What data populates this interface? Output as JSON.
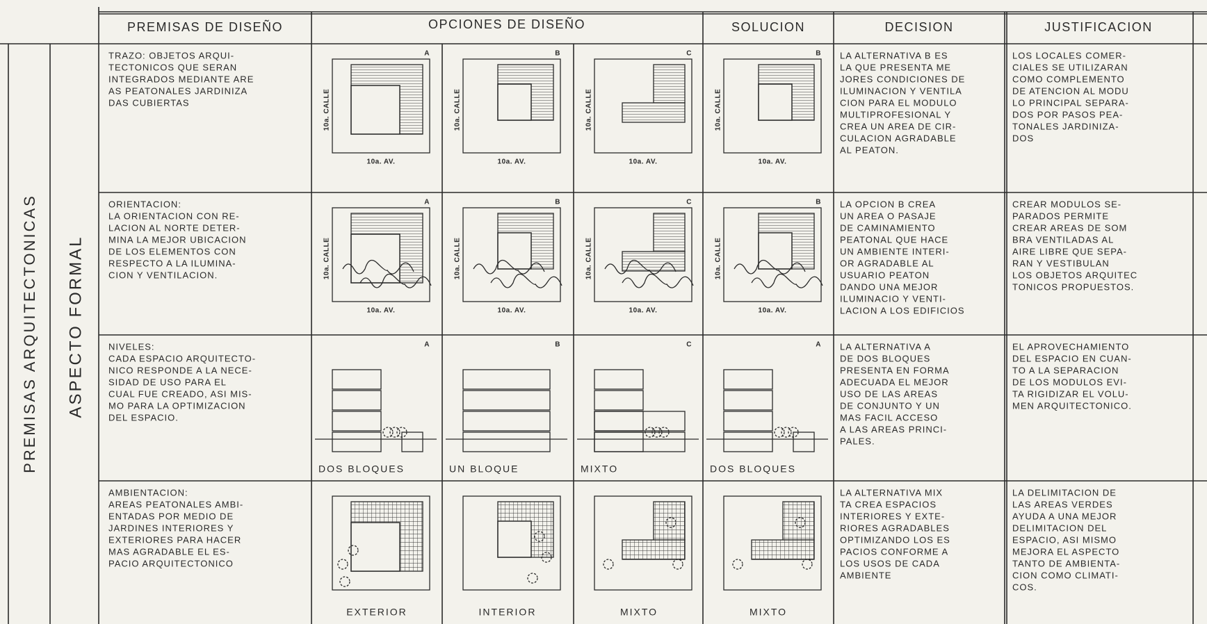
{
  "header": {
    "premisas": "PREMISAS DE DISEÑO",
    "opciones": "OPCIONES DE DISEÑO",
    "solucion": "SOLUCION",
    "decision": "DECISION",
    "justificacion": "JUSTIFICACION"
  },
  "side": {
    "group": "PREMISAS ARQUITECTONICAS",
    "aspect": "ASPECTO FORMAL"
  },
  "street_label": "10a. CALLE",
  "avenue_label": "10a. AV.",
  "rows": [
    {
      "premise": [
        "TRAZO: OBJETOS ARQUI-",
        "TECTONICOS QUE SERAN",
        "INTEGRADOS MEDIANTE ARE",
        "AS PEATONALES JARDINIZA",
        "DAS CUBIERTAS"
      ],
      "options": [
        {
          "letter": "A"
        },
        {
          "letter": "B"
        },
        {
          "letter": "C"
        }
      ],
      "solution": {
        "letter": "B"
      },
      "decision": [
        "LA ALTERNATIVA B ES",
        "LA QUE PRESENTA ME",
        "JORES CONDICIONES DE",
        "ILUMINACION Y VENTILA",
        "CION PARA EL MODULO",
        "MULTIPROFESIONAL Y",
        "CREA UN AREA DE CIR-",
        "CULACION AGRADABLE",
        "AL PEATON."
      ],
      "justification": [
        "LOS LOCALES COMER-",
        "CIALES SE UTILIZARAN",
        "COMO COMPLEMENTO",
        "DE ATENCION AL MODU",
        "LO PRINCIPAL SEPARA-",
        "DOS POR PASOS PEA-",
        "TONALES JARDINIZA-",
        "DOS"
      ]
    },
    {
      "premise": [
        "ORIENTACION:",
        "LA ORIENTACION CON RE-",
        "LACION AL NORTE DETER-",
        "MINA LA MEJOR UBICACION",
        "DE LOS ELEMENTOS CON",
        "RESPECTO A LA ILUMINA-",
        "CION Y VENTILACION."
      ],
      "options": [
        {
          "letter": "A"
        },
        {
          "letter": "B"
        },
        {
          "letter": "C"
        }
      ],
      "solution": {
        "letter": "B"
      },
      "decision": [
        "LA OPCION B CREA",
        "UN AREA O PASAJE",
        "DE CAMINAMIENTO",
        "PEATONAL QUE HACE",
        "UN AMBIENTE INTERI-",
        "OR AGRADABLE AL",
        "USUARIO PEATON",
        "DANDO UNA MEJOR",
        "ILUMINACIO Y VENTI-",
        "LACION A LOS EDIFICIOS"
      ],
      "justification": [
        "CREAR MODULOS SE-",
        "PARADOS PERMITE",
        "CREAR AREAS DE SOM",
        "BRA VENTILADAS AL",
        "AIRE LIBRE QUE SEPA-",
        "RAN Y VESTIBULAN",
        "LOS OBJETOS ARQUITEC",
        "TONICOS PROPUESTOS."
      ]
    },
    {
      "premise": [
        "NIVELES:",
        "CADA ESPACIO ARQUITECTO-",
        "NICO RESPONDE A LA NECE-",
        "SIDAD DE USO PARA EL",
        "CUAL FUE CREADO, ASI MIS-",
        "MO PARA LA OPTIMIZACION",
        "DEL ESPACIO."
      ],
      "options": [
        {
          "letter": "A",
          "caption": "DOS BLOQUES"
        },
        {
          "letter": "B",
          "caption": "UN BLOQUE"
        },
        {
          "letter": "C",
          "caption": "MIXTO"
        }
      ],
      "solution": {
        "letter": "A",
        "caption": "DOS BLOQUES"
      },
      "decision": [
        "LA ALTERNATIVA A",
        "DE DOS BLOQUES",
        "PRESENTA EN FORMA",
        "ADECUADA EL MEJOR",
        "USO DE LAS AREAS",
        "DE CONJUNTO Y UN",
        "MAS FACIL ACCESO",
        "A LAS AREAS PRINCI-",
        "PALES."
      ],
      "justification": [
        "EL APROVECHAMIENTO",
        "DEL ESPACIO EN CUAN-",
        "TO A LA SEPARACION",
        "DE LOS MODULOS EVI-",
        "TA RIGIDIZAR EL VOLU-",
        "MEN ARQUITECTONICO."
      ]
    },
    {
      "premise": [
        "AMBIENTACION:",
        "AREAS PEATONALES AMBI-",
        "ENTADAS POR MEDIO DE",
        "JARDINES INTERIORES Y",
        "EXTERIORES PARA HACER",
        "MAS AGRADABLE EL ES-",
        "PACIO ARQUITECTONICO"
      ],
      "options": [
        {
          "caption": "EXTERIOR"
        },
        {
          "caption": "INTERIOR"
        },
        {
          "caption": "MIXTO"
        }
      ],
      "solution": {
        "caption": "MIXTO"
      },
      "decision": [
        "LA ALTERNATIVA MIX",
        "TA CREA ESPACIOS",
        "INTERIORES Y EXTE-",
        "RIORES AGRADABLES",
        "OPTIMIZANDO LOS ES",
        "PACIOS CONFORME A",
        "LOS USOS DE CADA",
        "AMBIENTE"
      ],
      "justification": [
        "LA DELIMITACION DE",
        "LAS AREAS VERDES",
        "AYUDA A UNA MEJOR",
        "DELIMITACION DEL",
        "ESPACIO, ASI MISMO",
        "MEJORA EL ASPECTO",
        "TANTO DE AMBIENTA-",
        "CION COMO CLIMATI-",
        "COS."
      ]
    }
  ]
}
